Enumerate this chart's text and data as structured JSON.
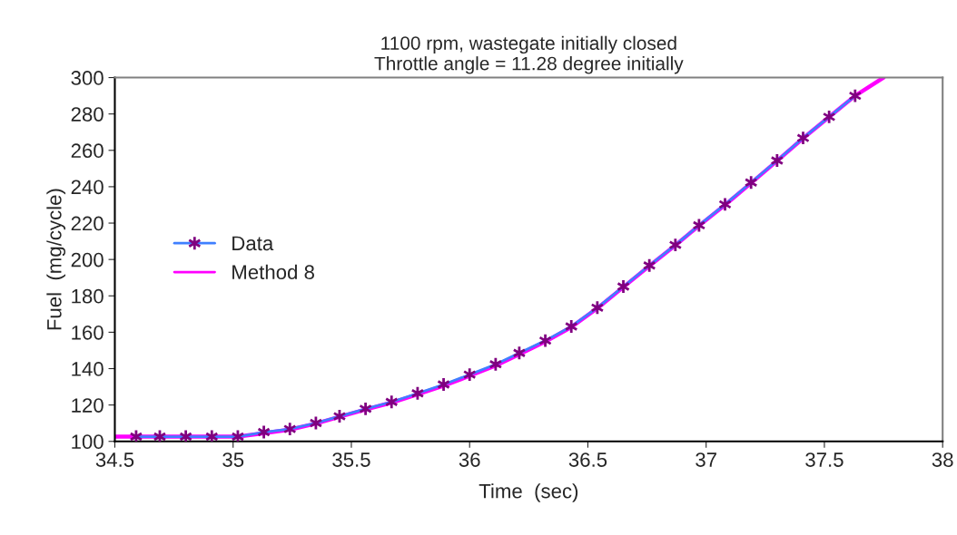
{
  "chart_data": {
    "type": "line",
    "title": "1100 rpm, wastegate initially closed\nThrottle angle = 11.28 degree initially",
    "xlabel": "Time  (sec)",
    "ylabel": "Fuel  (mg/cycle)",
    "xlim": [
      34.5,
      38
    ],
    "xticks": [
      34.5,
      35,
      35.5,
      36,
      36.5,
      37,
      37.5,
      38
    ],
    "ylim": [
      100,
      300
    ],
    "yticks": [
      100,
      120,
      140,
      160,
      180,
      200,
      220,
      240,
      260,
      280,
      300
    ],
    "grid": false,
    "legend": "center left",
    "series": [
      {
        "name": "Data",
        "color": "#3f7fff",
        "marker": "cross",
        "x": [
          34.59,
          34.69,
          34.8,
          34.91,
          35.02,
          35.13,
          35.24,
          35.35,
          35.45,
          35.56,
          35.67,
          35.78,
          35.89,
          36.0,
          36.11,
          36.21,
          36.32,
          36.43,
          36.54,
          36.65,
          36.76,
          36.87,
          36.97,
          37.08,
          37.19,
          37.3,
          37.41,
          37.52,
          37.63
        ],
        "values": [
          102.6,
          102.6,
          102.6,
          102.6,
          102.6,
          105.1,
          106.8,
          110.1,
          113.8,
          117.9,
          121.7,
          126.4,
          131.3,
          136.7,
          142.4,
          148.6,
          155.4,
          163.2,
          173.5,
          185.1,
          196.7,
          208,
          218.8,
          230.3,
          242.3,
          254.4,
          266.8,
          278.4,
          290
        ]
      },
      {
        "name": "Method 8",
        "color": "#ff00ff",
        "marker": "none",
        "x": [
          34.5,
          34.59,
          34.69,
          34.8,
          34.91,
          35.02,
          35.13,
          35.24,
          35.35,
          35.45,
          35.56,
          35.67,
          35.78,
          35.89,
          36.0,
          36.11,
          36.21,
          36.32,
          36.43,
          36.54,
          36.65,
          36.76,
          36.87,
          36.97,
          37.08,
          37.19,
          37.3,
          37.41,
          37.52,
          37.63,
          37.75
        ],
        "values": [
          102.6,
          102.6,
          102.6,
          102.6,
          102.6,
          102.6,
          104.5,
          106.5,
          109.8,
          113.5,
          117.5,
          121.3,
          125.8,
          130.6,
          136,
          141.6,
          147.8,
          154.8,
          162.8,
          173.2,
          184.8,
          196.5,
          207.8,
          218.6,
          230,
          242,
          254.2,
          266.6,
          278.3,
          290,
          300
        ]
      }
    ]
  }
}
